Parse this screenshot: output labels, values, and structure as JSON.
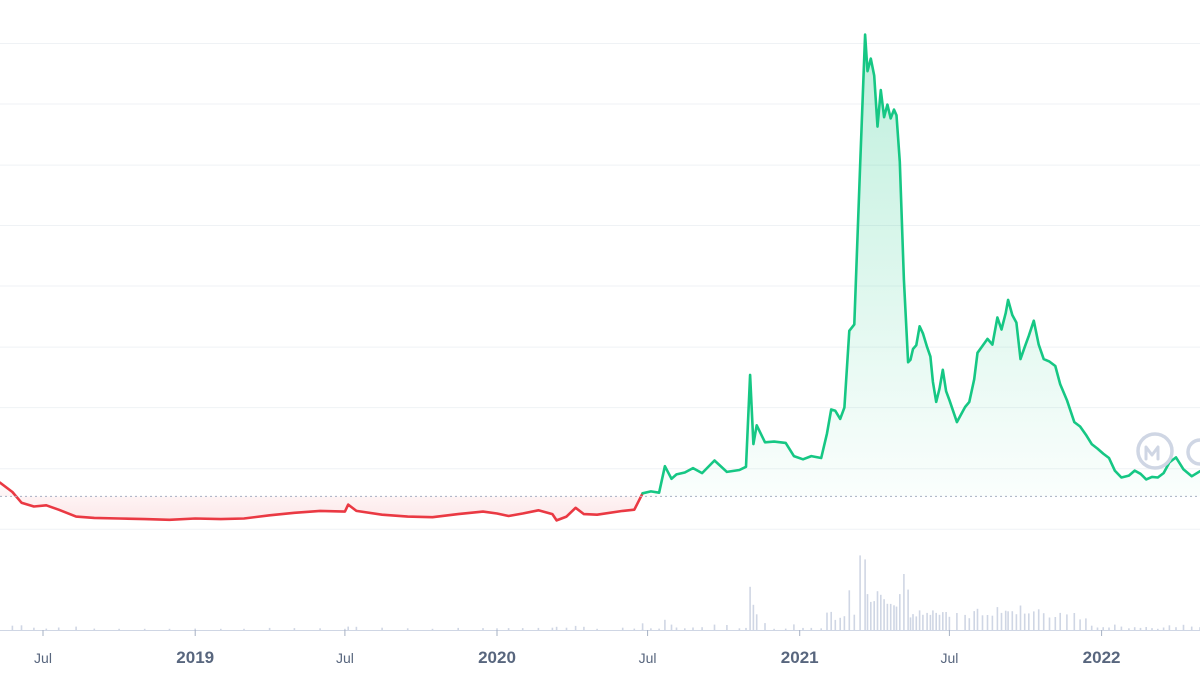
{
  "chart_data": {
    "type": "area",
    "title": "",
    "xlabel": "",
    "ylabel": "",
    "grid": true,
    "x_ticks": [
      {
        "date": "2018-07-01",
        "label": "Jul",
        "bold": false
      },
      {
        "date": "2019-01-01",
        "label": "2019",
        "bold": true
      },
      {
        "date": "2019-07-01",
        "label": "Jul",
        "bold": false
      },
      {
        "date": "2020-01-01",
        "label": "2020",
        "bold": true
      },
      {
        "date": "2020-07-01",
        "label": "Jul",
        "bold": false
      },
      {
        "date": "2021-01-01",
        "label": "2021",
        "bold": true
      },
      {
        "date": "2021-07-01",
        "label": "Jul",
        "bold": false
      },
      {
        "date": "2022-01-01",
        "label": "2022",
        "bold": true
      }
    ],
    "xlim": [
      "2018-05-10",
      "2022-04-30"
    ],
    "ylim": [
      0,
      100
    ],
    "y_grid_values": [
      16,
      25.6,
      35.3,
      44.9,
      54.6,
      64.2,
      73.8,
      83.5,
      93.1,
      102.8
    ],
    "baseline_value": 21.2,
    "colors": {
      "up": "#16c784",
      "down": "#ea3943",
      "grid": "#eff2f5",
      "tick_label": "#58667e",
      "watermark": "#cfd6e4"
    },
    "watermark_icon": "coinmarketcap-logo-icon",
    "series": [
      {
        "values": [
          [
            "2018-05-10",
            23.4
          ],
          [
            "2018-05-25",
            21.9
          ],
          [
            "2018-06-05",
            20.2
          ],
          [
            "2018-06-20",
            19.6
          ],
          [
            "2018-07-05",
            19.8
          ],
          [
            "2018-07-20",
            19.1
          ],
          [
            "2018-08-10",
            18.0
          ],
          [
            "2018-09-01",
            17.8
          ],
          [
            "2018-10-01",
            17.7
          ],
          [
            "2018-11-01",
            17.6
          ],
          [
            "2018-12-01",
            17.5
          ],
          [
            "2019-01-01",
            17.7
          ],
          [
            "2019-02-01",
            17.6
          ],
          [
            "2019-03-01",
            17.7
          ],
          [
            "2019-04-01",
            18.2
          ],
          [
            "2019-05-01",
            18.6
          ],
          [
            "2019-06-01",
            18.9
          ],
          [
            "2019-07-01",
            18.8
          ],
          [
            "2019-07-05",
            19.9
          ],
          [
            "2019-07-15",
            18.9
          ],
          [
            "2019-08-15",
            18.3
          ],
          [
            "2019-09-15",
            18.0
          ],
          [
            "2019-10-15",
            17.9
          ],
          [
            "2019-11-15",
            18.4
          ],
          [
            "2019-12-15",
            18.8
          ],
          [
            "2020-01-01",
            18.5
          ],
          [
            "2020-01-15",
            18.1
          ],
          [
            "2020-02-01",
            18.5
          ],
          [
            "2020-02-20",
            19.0
          ],
          [
            "2020-03-08",
            18.4
          ],
          [
            "2020-03-13",
            17.4
          ],
          [
            "2020-03-25",
            18.0
          ],
          [
            "2020-04-05",
            19.4
          ],
          [
            "2020-04-15",
            18.4
          ],
          [
            "2020-05-01",
            18.3
          ],
          [
            "2020-06-01",
            18.9
          ],
          [
            "2020-06-15",
            19.1
          ],
          [
            "2020-06-25",
            21.7
          ]
        ],
        "color": "down"
      },
      {
        "values": [
          [
            "2020-06-25",
            21.7
          ],
          [
            "2020-07-05",
            22.0
          ],
          [
            "2020-07-15",
            21.8
          ],
          [
            "2020-07-22",
            26.0
          ],
          [
            "2020-07-30",
            24.0
          ],
          [
            "2020-08-05",
            24.7
          ],
          [
            "2020-08-15",
            25.0
          ],
          [
            "2020-08-25",
            25.7
          ],
          [
            "2020-09-05",
            24.9
          ],
          [
            "2020-09-20",
            26.9
          ],
          [
            "2020-10-05",
            25.1
          ],
          [
            "2020-10-20",
            25.4
          ],
          [
            "2020-10-28",
            25.9
          ],
          [
            "2020-11-02",
            40.5
          ],
          [
            "2020-11-06",
            29.5
          ],
          [
            "2020-11-10",
            32.5
          ],
          [
            "2020-11-20",
            29.8
          ],
          [
            "2020-12-01",
            29.9
          ],
          [
            "2020-12-15",
            29.7
          ],
          [
            "2020-12-25",
            27.6
          ],
          [
            "2021-01-05",
            27.1
          ],
          [
            "2021-01-15",
            27.6
          ],
          [
            "2021-01-27",
            27.3
          ],
          [
            "2021-02-03",
            31.2
          ],
          [
            "2021-02-08",
            35.0
          ],
          [
            "2021-02-13",
            34.8
          ],
          [
            "2021-02-19",
            33.5
          ],
          [
            "2021-02-24",
            35.3
          ],
          [
            "2021-03-02",
            47.5
          ],
          [
            "2021-03-08",
            48.5
          ],
          [
            "2021-03-15",
            73.6
          ],
          [
            "2021-03-21",
            94.5
          ],
          [
            "2021-03-24",
            88.7
          ],
          [
            "2021-03-28",
            90.7
          ],
          [
            "2021-04-01",
            88.0
          ],
          [
            "2021-04-05",
            79.9
          ],
          [
            "2021-04-09",
            85.7
          ],
          [
            "2021-04-13",
            81.4
          ],
          [
            "2021-04-17",
            83.4
          ],
          [
            "2021-04-21",
            81.2
          ],
          [
            "2021-04-25",
            82.6
          ],
          [
            "2021-04-28",
            81.7
          ],
          [
            "2021-05-02",
            74.3
          ],
          [
            "2021-05-07",
            55.6
          ],
          [
            "2021-05-12",
            42.5
          ],
          [
            "2021-05-15",
            42.9
          ],
          [
            "2021-05-18",
            44.6
          ],
          [
            "2021-05-22",
            45.2
          ],
          [
            "2021-05-26",
            48.2
          ],
          [
            "2021-05-30",
            47.1
          ],
          [
            "2021-06-04",
            44.9
          ],
          [
            "2021-06-08",
            43.4
          ],
          [
            "2021-06-11",
            39.4
          ],
          [
            "2021-06-15",
            36.2
          ],
          [
            "2021-06-19",
            38.3
          ],
          [
            "2021-06-23",
            41.3
          ],
          [
            "2021-06-27",
            37.9
          ],
          [
            "2021-07-01",
            36.5
          ],
          [
            "2021-07-10",
            33.0
          ],
          [
            "2021-07-20",
            35.4
          ],
          [
            "2021-07-25",
            36.2
          ],
          [
            "2021-07-31",
            39.8
          ],
          [
            "2021-08-04",
            44.0
          ],
          [
            "2021-08-10",
            45.1
          ],
          [
            "2021-08-16",
            46.2
          ],
          [
            "2021-08-22",
            45.3
          ],
          [
            "2021-08-28",
            49.6
          ],
          [
            "2021-09-02",
            47.7
          ],
          [
            "2021-09-07",
            50.3
          ],
          [
            "2021-09-10",
            52.4
          ],
          [
            "2021-09-15",
            50.0
          ],
          [
            "2021-09-20",
            48.8
          ],
          [
            "2021-09-25",
            43.0
          ],
          [
            "2021-09-30",
            44.9
          ],
          [
            "2021-10-05",
            46.7
          ],
          [
            "2021-10-11",
            49.1
          ],
          [
            "2021-10-17",
            45.3
          ],
          [
            "2021-10-23",
            43.0
          ],
          [
            "2021-10-30",
            42.6
          ],
          [
            "2021-11-06",
            41.9
          ],
          [
            "2021-11-12",
            39.0
          ],
          [
            "2021-11-20",
            36.5
          ],
          [
            "2021-11-29",
            33.0
          ],
          [
            "2021-12-06",
            32.3
          ],
          [
            "2021-12-13",
            31.0
          ],
          [
            "2021-12-20",
            29.5
          ],
          [
            "2021-12-27",
            28.8
          ],
          [
            "2022-01-03",
            28.0
          ],
          [
            "2022-01-10",
            27.3
          ],
          [
            "2022-01-17",
            25.3
          ],
          [
            "2022-01-25",
            24.2
          ],
          [
            "2022-02-03",
            24.5
          ],
          [
            "2022-02-10",
            25.3
          ],
          [
            "2022-02-17",
            24.8
          ],
          [
            "2022-02-24",
            23.9
          ],
          [
            "2022-03-03",
            24.3
          ],
          [
            "2022-03-10",
            24.2
          ],
          [
            "2022-03-17",
            24.9
          ],
          [
            "2022-03-24",
            26.6
          ],
          [
            "2022-04-01",
            27.4
          ],
          [
            "2022-04-10",
            25.5
          ],
          [
            "2022-04-20",
            24.4
          ],
          [
            "2022-04-30",
            25.2
          ]
        ],
        "color": "up"
      }
    ]
  }
}
